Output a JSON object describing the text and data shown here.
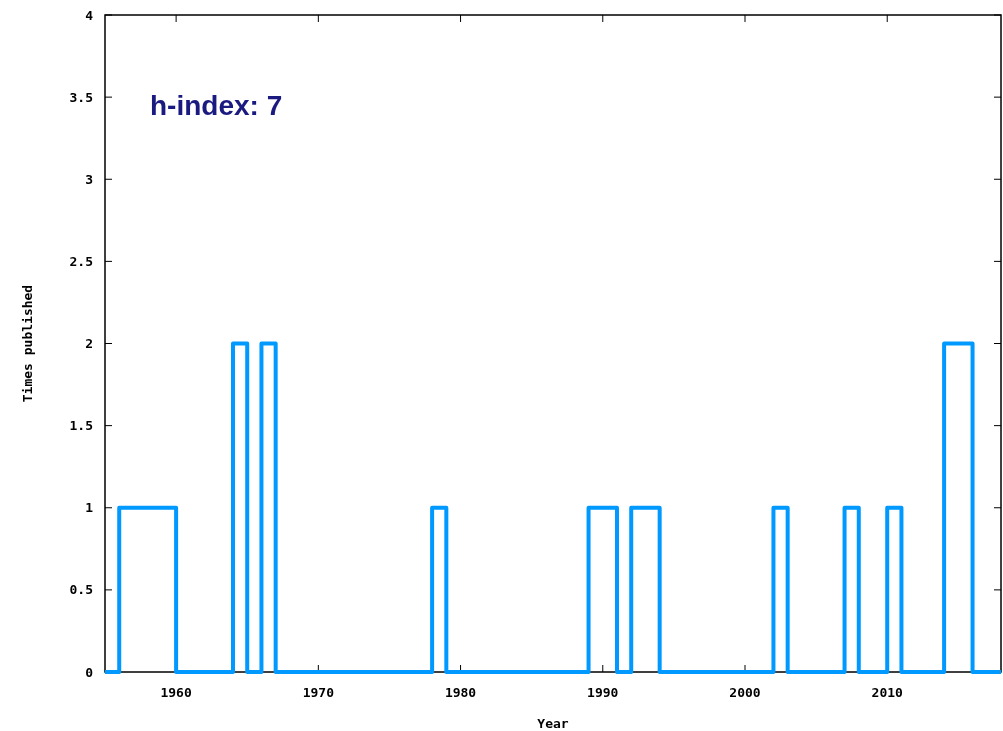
{
  "chart_data": {
    "type": "step",
    "xlabel": "Year",
    "ylabel": "Times published",
    "annotations": [
      "h-index: 7"
    ],
    "x": [
      1955,
      1956,
      1960,
      1964,
      1965,
      1966,
      1967,
      1978,
      1979,
      1989,
      1991,
      1992,
      1994,
      2002,
      2003,
      2007,
      2008,
      2010,
      2011,
      2014,
      2016,
      2018
    ],
    "series": [
      {
        "color": "#0099ff",
        "values": [
          0,
          1,
          0,
          2,
          0,
          2,
          0,
          1,
          0,
          1,
          0,
          1,
          0,
          1,
          0,
          1,
          0,
          1,
          0,
          2,
          0,
          0
        ]
      }
    ],
    "xlim": [
      1955,
      2018
    ],
    "ylim": [
      0,
      4
    ],
    "xticks": [
      1960,
      1970,
      1980,
      1990,
      2000,
      2010
    ],
    "yticks": [
      0,
      0.5,
      1,
      1.5,
      2,
      2.5,
      3,
      3.5,
      4
    ],
    "grid": false
  }
}
